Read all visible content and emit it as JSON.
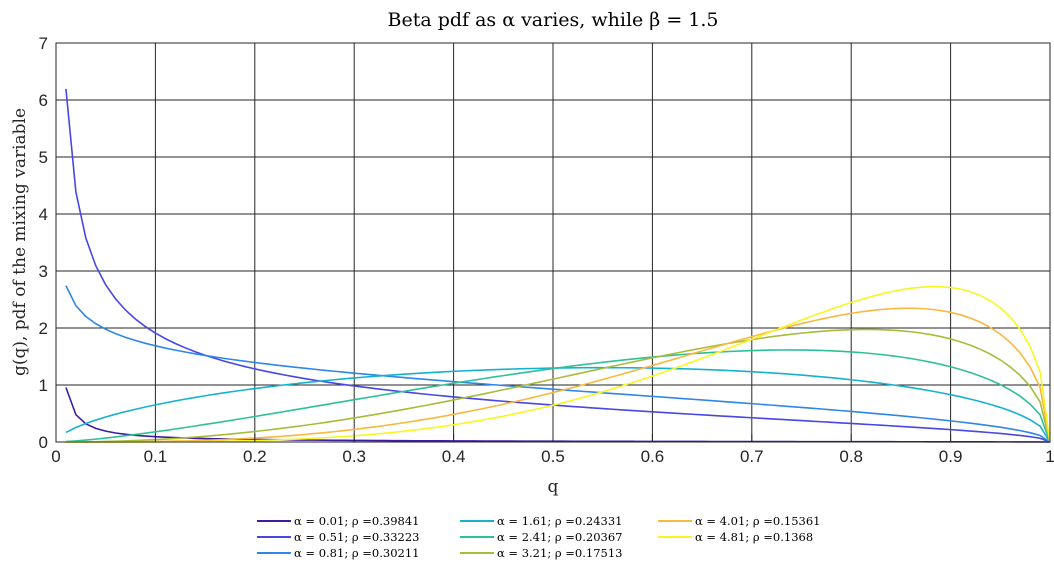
{
  "chart_data": {
    "type": "line",
    "title": "Beta pdf as α varies, while β = 1.5",
    "xlabel": "q",
    "ylabel": "g(q), pdf of the mixing variable",
    "xlim": [
      0,
      1
    ],
    "ylim": [
      0,
      7
    ],
    "xticks": [
      "0",
      "0.1",
      "0.2",
      "0.3",
      "0.4",
      "0.5",
      "0.6",
      "0.7",
      "0.8",
      "0.9",
      "1"
    ],
    "yticks": [
      "0",
      "1",
      "2",
      "3",
      "4",
      "5",
      "6",
      "7"
    ],
    "grid": true,
    "beta": 1.5,
    "x_range_sampled": [
      0.01,
      1.0
    ],
    "legend_position": "bottom",
    "series": [
      {
        "name": "α = 0.01; ρ =0.39841",
        "alpha": 0.01,
        "color": "#3d1ea0"
      },
      {
        "name": "α = 0.51; ρ =0.33223",
        "alpha": 0.51,
        "color": "#4747e6"
      },
      {
        "name": "α = 0.81; ρ =0.30211",
        "alpha": 0.81,
        "color": "#2f86ea"
      },
      {
        "name": "α = 1.61; ρ =0.24331",
        "alpha": 1.61,
        "color": "#16b1cf"
      },
      {
        "name": "α = 2.41; ρ =0.20367",
        "alpha": 2.41,
        "color": "#2ec097"
      },
      {
        "name": "α = 3.21; ρ =0.17513",
        "alpha": 3.21,
        "color": "#a7bd3a"
      },
      {
        "name": "α = 4.01; ρ =0.15361",
        "alpha": 4.01,
        "color": "#f9b83f"
      },
      {
        "name": "α = 4.81; ρ =0.1368",
        "alpha": 4.81,
        "color": "#f7f622"
      }
    ]
  }
}
